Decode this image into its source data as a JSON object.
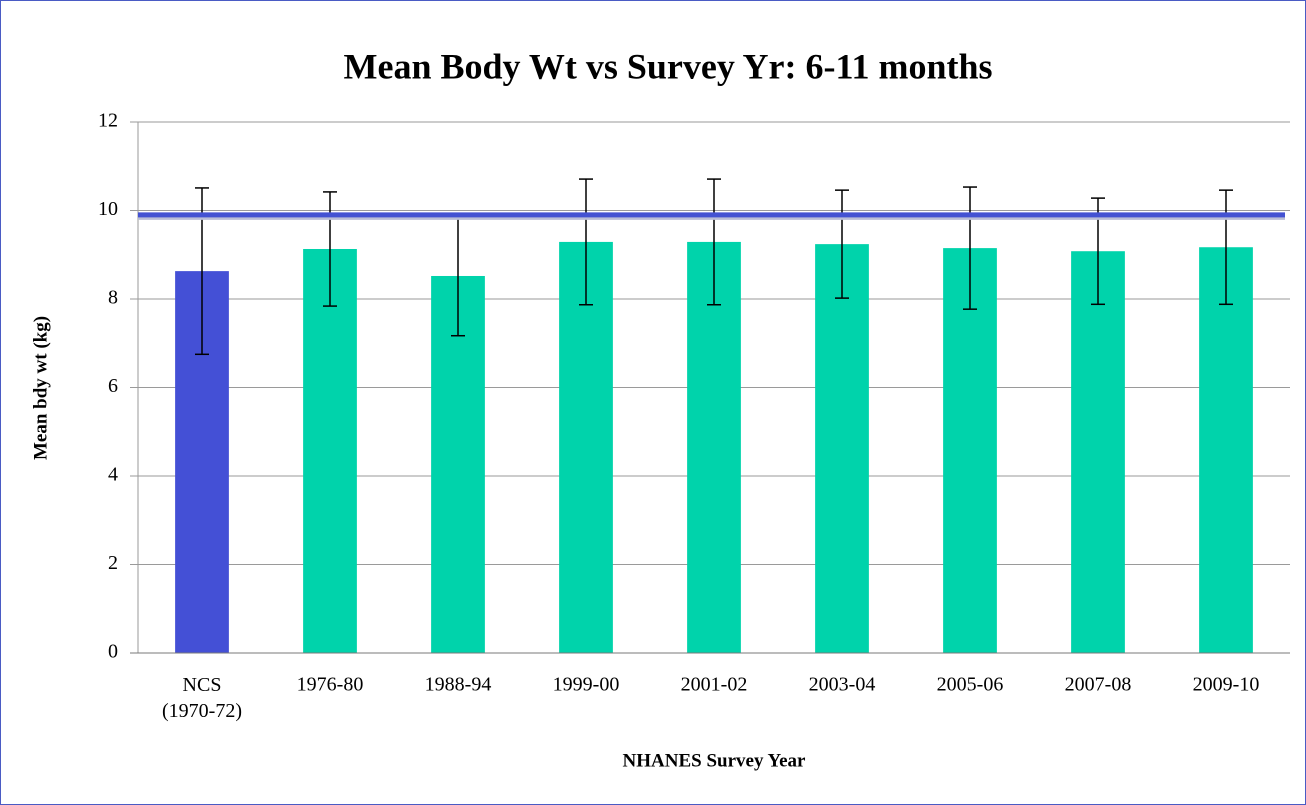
{
  "chart_data": {
    "type": "bar",
    "title": "Mean Body Wt vs Survey Yr: 6-11 months",
    "x_label": "NHANES Survey Year",
    "y_label": "Mean bdy wt (kg)",
    "categories": [
      "NCS\n(1970-72)",
      "1976-80",
      "1988-94",
      "1999-00",
      "2001-02",
      "2003-04",
      "2005-06",
      "2007-08",
      "2009-10"
    ],
    "values": [
      8.63,
      9.13,
      8.52,
      9.29,
      9.29,
      9.24,
      9.15,
      9.08,
      9.17
    ],
    "errors": [
      1.88,
      1.29,
      1.35,
      1.42,
      1.42,
      1.22,
      1.38,
      1.2,
      1.29
    ],
    "colors": [
      "#4450d6",
      "#00d3ab",
      "#00d3ab",
      "#00d3ab",
      "#00d3ab",
      "#00d3ab",
      "#00d3ab",
      "#00d3ab",
      "#00d3ab"
    ],
    "reference_line": {
      "value": 9.9,
      "color": "#4352d2"
    },
    "ylim": [
      0,
      12
    ],
    "yticks": [
      0,
      2,
      4,
      6,
      8,
      10,
      12
    ],
    "grid": true
  }
}
